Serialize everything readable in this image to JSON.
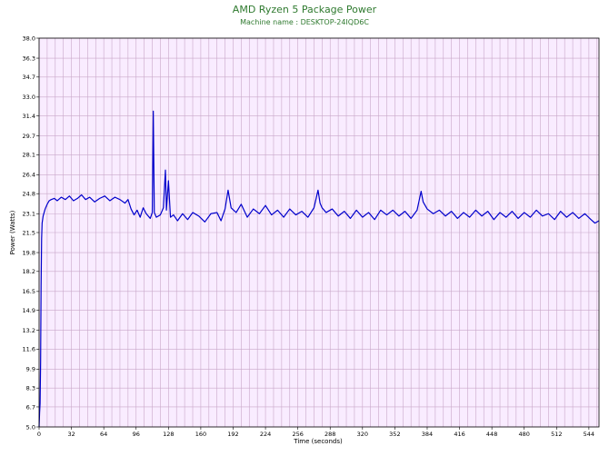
{
  "chart_data": {
    "type": "line",
    "title": "AMD Ryzen 5 Package Power",
    "subtitle": "Machine name : DESKTOP-24IQD6C",
    "xlabel": "Time (seconds)",
    "ylabel": "Power (Watts)",
    "xlim": [
      0,
      554
    ],
    "ylim": [
      5.0,
      38.0
    ],
    "x_ticks": [
      "0",
      "32",
      "64",
      "96",
      "128",
      "160",
      "192",
      "224",
      "256",
      "288",
      "320",
      "352",
      "384",
      "416",
      "448",
      "480",
      "512",
      "544"
    ],
    "y_ticks": [
      "5.0",
      "6.7",
      "8.3",
      "9.9",
      "11.6",
      "13.2",
      "14.9",
      "16.5",
      "18.2",
      "19.8",
      "21.5",
      "23.1",
      "24.8",
      "26.4",
      "28.1",
      "29.7",
      "31.4",
      "33.0",
      "34.7",
      "36.3",
      "38.0"
    ],
    "grid": true,
    "series": [
      {
        "color": "#0000cc",
        "x": [
          0,
          0.5,
          1,
          1.5,
          2,
          2.5,
          3,
          4,
          5,
          6,
          8,
          10,
          12,
          15,
          18,
          22,
          26,
          30,
          34,
          38,
          42,
          46,
          50,
          55,
          60,
          65,
          70,
          75,
          80,
          85,
          88,
          91,
          94,
          97,
          100,
          103,
          106,
          110,
          112,
          113,
          114,
          116,
          120,
          123,
          125,
          126,
          128,
          130,
          133,
          137,
          142,
          147,
          152,
          158,
          164,
          170,
          176,
          180,
          184,
          187,
          190,
          195,
          200,
          206,
          212,
          218,
          224,
          230,
          236,
          242,
          248,
          254,
          260,
          266,
          272,
          276,
          278,
          280,
          284,
          290,
          296,
          302,
          308,
          314,
          320,
          326,
          332,
          338,
          344,
          350,
          356,
          362,
          368,
          374,
          378,
          380,
          384,
          390,
          396,
          402,
          408,
          414,
          420,
          426,
          432,
          438,
          444,
          450,
          456,
          462,
          468,
          474,
          480,
          486,
          492,
          498,
          504,
          510,
          516,
          522,
          528,
          534,
          540,
          546,
          550,
          554
        ],
        "values": [
          5.0,
          6.2,
          7.0,
          10.5,
          17.0,
          21.0,
          22.3,
          22.9,
          23.2,
          23.5,
          23.9,
          24.2,
          24.3,
          24.4,
          24.2,
          24.5,
          24.3,
          24.6,
          24.2,
          24.4,
          24.7,
          24.3,
          24.5,
          24.1,
          24.4,
          24.6,
          24.2,
          24.5,
          24.3,
          24.0,
          24.3,
          23.5,
          23.0,
          23.4,
          22.8,
          23.6,
          23.1,
          22.7,
          23.2,
          31.8,
          23.2,
          22.8,
          23.0,
          23.6,
          26.8,
          23.4,
          25.9,
          22.8,
          23.0,
          22.5,
          23.1,
          22.6,
          23.2,
          22.9,
          22.4,
          23.1,
          23.2,
          22.5,
          23.5,
          25.1,
          23.6,
          23.2,
          23.9,
          22.8,
          23.5,
          23.1,
          23.8,
          23.0,
          23.4,
          22.8,
          23.5,
          23.0,
          23.3,
          22.8,
          23.6,
          25.1,
          24.0,
          23.6,
          23.2,
          23.5,
          22.9,
          23.3,
          22.7,
          23.4,
          22.8,
          23.2,
          22.6,
          23.4,
          23.0,
          23.4,
          22.9,
          23.3,
          22.7,
          23.4,
          25.0,
          24.1,
          23.5,
          23.1,
          23.4,
          22.9,
          23.3,
          22.7,
          23.2,
          22.8,
          23.4,
          22.9,
          23.3,
          22.6,
          23.2,
          22.8,
          23.3,
          22.7,
          23.2,
          22.8,
          23.4,
          22.9,
          23.1,
          22.6,
          23.3,
          22.8,
          23.2,
          22.7,
          23.1,
          22.6,
          22.3,
          22.5
        ]
      }
    ]
  }
}
